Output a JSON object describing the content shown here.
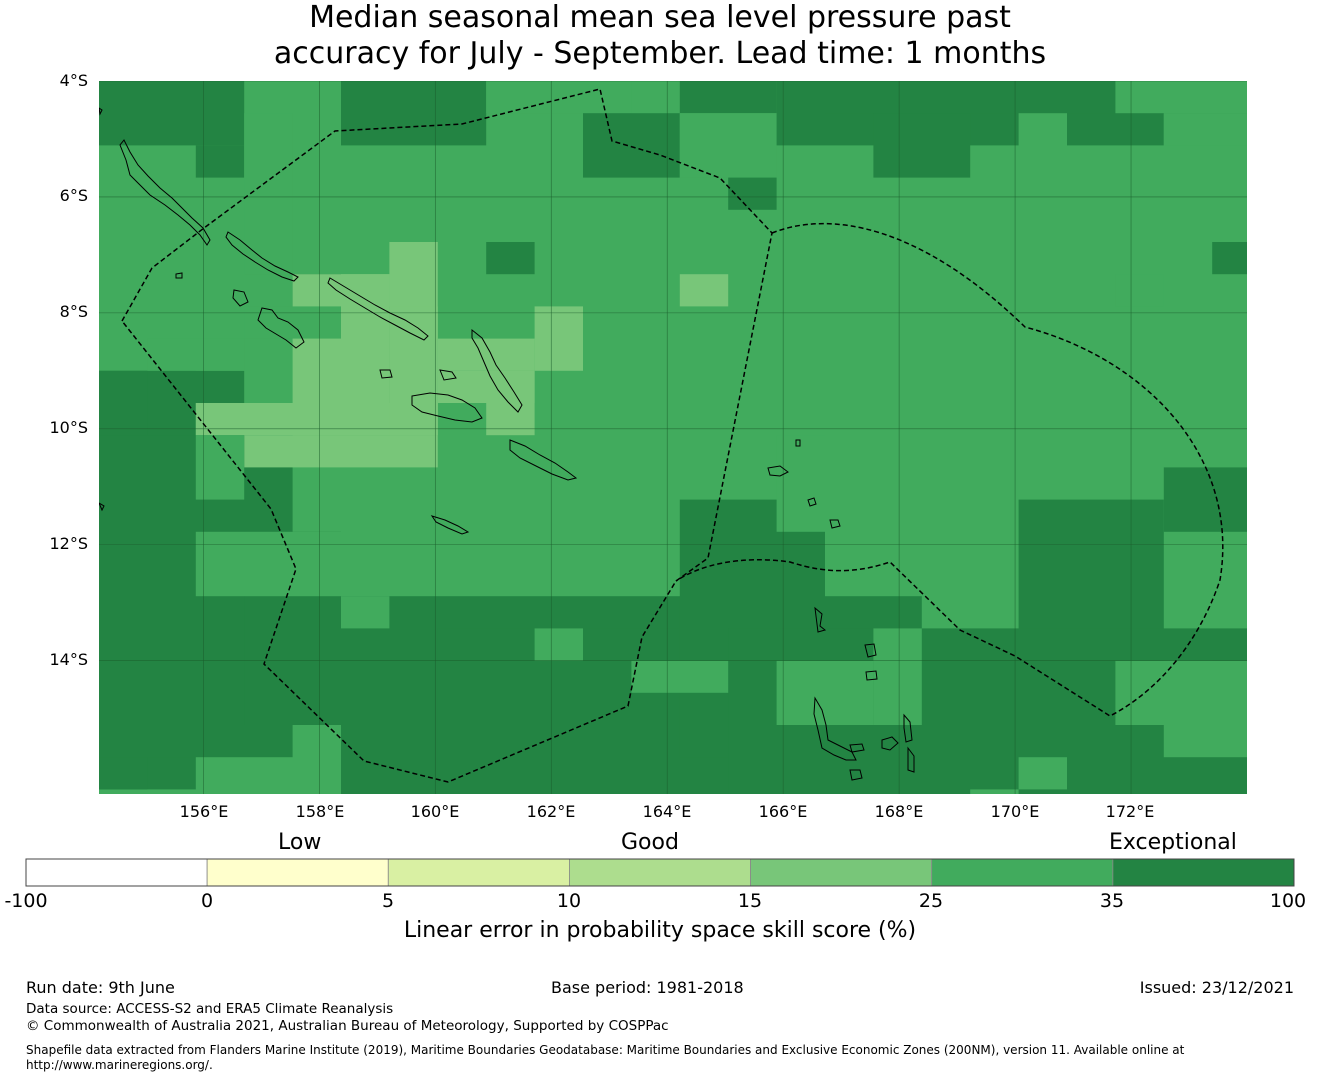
{
  "title": {
    "line1": "Median seasonal mean sea level pressure past",
    "line2": "accuracy for July - September. Lead time: 1 months"
  },
  "map": {
    "lat_labels": [
      "4°S",
      "6°S",
      "8°S",
      "10°S",
      "12°S",
      "14°S"
    ],
    "lon_labels": [
      "156°E",
      "158°E",
      "160°E",
      "162°E",
      "164°E",
      "166°E",
      "168°E",
      "170°E",
      "172°E"
    ],
    "extent": {
      "lon_min": 154.2,
      "lon_max": 174.0,
      "lat_min": -16.3,
      "lat_max": -4.0
    },
    "gridlines": true,
    "eez_boundary": "dashed",
    "colors": {
      "exceptional": "#238443",
      "high_good": "#41ab5d",
      "mid_good": "#78c679",
      "coast": "#000000"
    }
  },
  "colorbar": {
    "category_labels": [
      "Low",
      "Good",
      "Exceptional"
    ],
    "ticks": [
      "-100",
      "0",
      "5",
      "10",
      "15",
      "25",
      "35",
      "100"
    ],
    "colors": [
      "#ffffff",
      "#ffffcc",
      "#d9f0a3",
      "#addd8e",
      "#78c679",
      "#41ab5d",
      "#238443"
    ],
    "label": "Linear error in probability space skill score (%)"
  },
  "footer": {
    "run_date": "Run date: 9th June",
    "base_period": "Base period: 1981-2018",
    "issued": "Issued: 23/12/2021",
    "data_source": "Data source: ACCESS-S2 and ERA5 Climate Reanalysis",
    "copyright": "© Commonwealth of Australia 2021, Australian Bureau of Meteorology, Supported by COSPPac",
    "shapefile_line1": "Shapefile data extracted from Flanders Marine Institute (2019), Maritime Boundaries Geodatabase: Maritime Boundaries and Exclusive Economic Zones (200NM), version 11. Available online at",
    "shapefile_line2": "http://www.marineregions.org/."
  }
}
